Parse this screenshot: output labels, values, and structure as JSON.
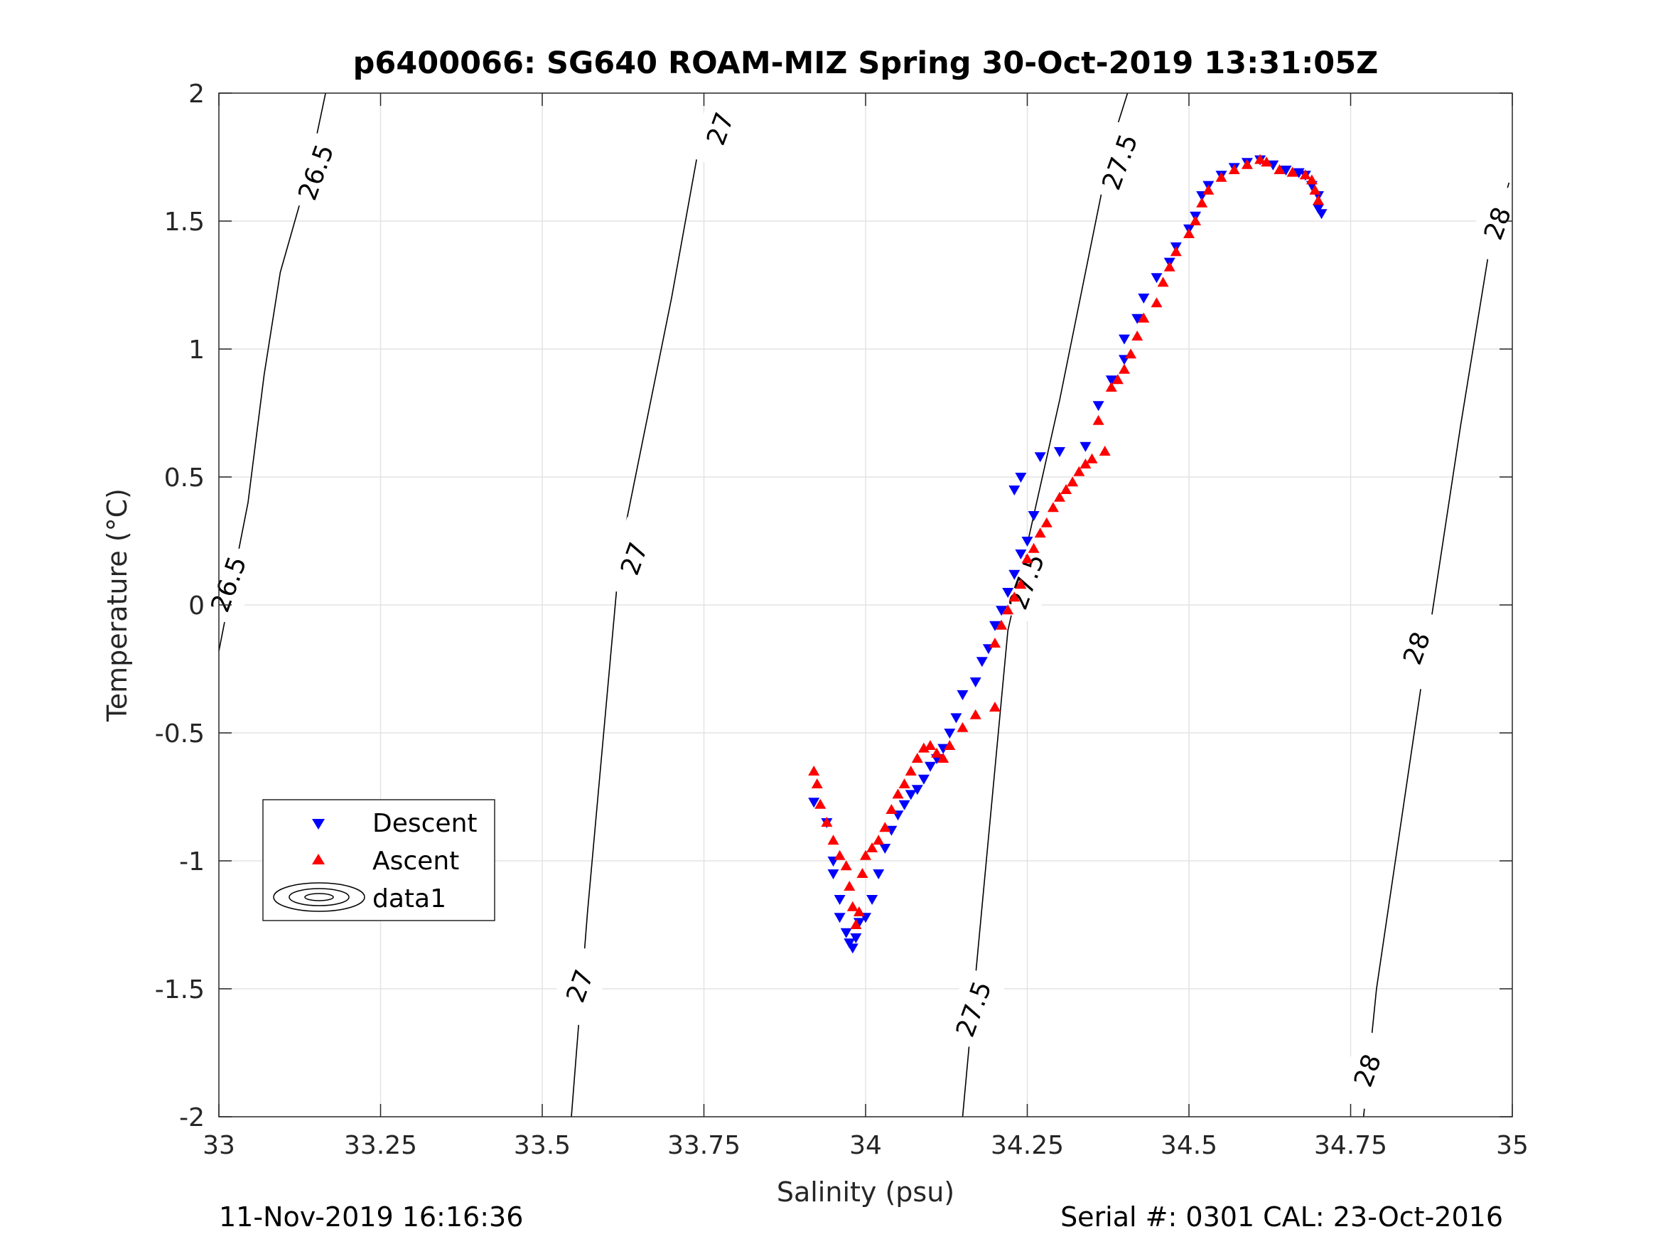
{
  "chart_data": {
    "type": "scatter",
    "title": "p6400066: SG640 ROAM-MIZ Spring 30-Oct-2019 13:31:05Z",
    "xlabel": "Salinity (psu)",
    "ylabel": "Temperature (°C)",
    "xlim": [
      33,
      35
    ],
    "ylim": [
      -2,
      2
    ],
    "x_ticks": [
      "33",
      "33.25",
      "33.5",
      "33.75",
      "34",
      "34.25",
      "34.5",
      "34.75",
      "35"
    ],
    "y_ticks": [
      "2",
      "1.5",
      "1",
      "0.5",
      "0",
      "-0.5",
      "-1",
      "-1.5",
      "-2"
    ],
    "grid": true,
    "legend_position": "lower-left",
    "series": [
      {
        "name": "Descent",
        "marker": "triangle-down",
        "color": "#0000ff",
        "points": [
          [
            33.92,
            -0.77
          ],
          [
            33.94,
            -0.85
          ],
          [
            33.95,
            -1.0
          ],
          [
            33.95,
            -1.05
          ],
          [
            33.96,
            -1.15
          ],
          [
            33.96,
            -1.22
          ],
          [
            33.97,
            -1.28
          ],
          [
            33.975,
            -1.32
          ],
          [
            33.98,
            -1.34
          ],
          [
            33.985,
            -1.3
          ],
          [
            33.99,
            -1.24
          ],
          [
            34.0,
            -1.22
          ],
          [
            34.01,
            -1.15
          ],
          [
            34.02,
            -1.05
          ],
          [
            34.03,
            -0.95
          ],
          [
            34.04,
            -0.88
          ],
          [
            34.05,
            -0.82
          ],
          [
            34.06,
            -0.78
          ],
          [
            34.07,
            -0.74
          ],
          [
            34.08,
            -0.72
          ],
          [
            34.09,
            -0.68
          ],
          [
            34.1,
            -0.63
          ],
          [
            34.11,
            -0.6
          ],
          [
            34.12,
            -0.56
          ],
          [
            34.13,
            -0.5
          ],
          [
            34.14,
            -0.44
          ],
          [
            34.15,
            -0.35
          ],
          [
            34.17,
            -0.3
          ],
          [
            34.18,
            -0.22
          ],
          [
            34.19,
            -0.17
          ],
          [
            34.2,
            -0.08
          ],
          [
            34.21,
            -0.02
          ],
          [
            34.22,
            0.05
          ],
          [
            34.23,
            0.12
          ],
          [
            34.24,
            0.2
          ],
          [
            34.25,
            0.25
          ],
          [
            34.26,
            0.35
          ],
          [
            34.23,
            0.45
          ],
          [
            34.24,
            0.5
          ],
          [
            34.27,
            0.58
          ],
          [
            34.3,
            0.6
          ],
          [
            34.34,
            0.62
          ],
          [
            34.36,
            0.78
          ],
          [
            34.38,
            0.88
          ],
          [
            34.4,
            0.96
          ],
          [
            34.4,
            1.04
          ],
          [
            34.42,
            1.12
          ],
          [
            34.43,
            1.2
          ],
          [
            34.45,
            1.28
          ],
          [
            34.47,
            1.34
          ],
          [
            34.48,
            1.4
          ],
          [
            34.5,
            1.47
          ],
          [
            34.51,
            1.52
          ],
          [
            34.52,
            1.6
          ],
          [
            34.53,
            1.64
          ],
          [
            34.55,
            1.68
          ],
          [
            34.57,
            1.71
          ],
          [
            34.59,
            1.73
          ],
          [
            34.61,
            1.74
          ],
          [
            34.63,
            1.72
          ],
          [
            34.65,
            1.7
          ],
          [
            34.67,
            1.69
          ],
          [
            34.68,
            1.68
          ],
          [
            34.69,
            1.64
          ],
          [
            34.7,
            1.6
          ],
          [
            34.7,
            1.55
          ],
          [
            34.705,
            1.53
          ]
        ]
      },
      {
        "name": "Ascent",
        "marker": "triangle-up",
        "color": "#ff0000",
        "points": [
          [
            33.92,
            -0.65
          ],
          [
            33.925,
            -0.7
          ],
          [
            33.93,
            -0.78
          ],
          [
            33.94,
            -0.85
          ],
          [
            33.95,
            -0.92
          ],
          [
            33.96,
            -0.98
          ],
          [
            33.97,
            -1.02
          ],
          [
            33.975,
            -1.1
          ],
          [
            33.98,
            -1.18
          ],
          [
            33.985,
            -1.25
          ],
          [
            33.99,
            -1.2
          ],
          [
            33.995,
            -1.05
          ],
          [
            34.0,
            -0.98
          ],
          [
            34.01,
            -0.95
          ],
          [
            34.02,
            -0.92
          ],
          [
            34.03,
            -0.87
          ],
          [
            34.04,
            -0.8
          ],
          [
            34.05,
            -0.74
          ],
          [
            34.06,
            -0.7
          ],
          [
            34.07,
            -0.65
          ],
          [
            34.08,
            -0.6
          ],
          [
            34.09,
            -0.56
          ],
          [
            34.1,
            -0.55
          ],
          [
            34.11,
            -0.58
          ],
          [
            34.12,
            -0.6
          ],
          [
            34.13,
            -0.55
          ],
          [
            34.15,
            -0.48
          ],
          [
            34.17,
            -0.43
          ],
          [
            34.2,
            -0.4
          ],
          [
            34.2,
            -0.15
          ],
          [
            34.21,
            -0.08
          ],
          [
            34.22,
            -0.02
          ],
          [
            34.23,
            0.03
          ],
          [
            34.24,
            0.08
          ],
          [
            34.25,
            0.18
          ],
          [
            34.26,
            0.22
          ],
          [
            34.27,
            0.28
          ],
          [
            34.28,
            0.32
          ],
          [
            34.29,
            0.38
          ],
          [
            34.3,
            0.42
          ],
          [
            34.31,
            0.45
          ],
          [
            34.32,
            0.48
          ],
          [
            34.33,
            0.52
          ],
          [
            34.34,
            0.55
          ],
          [
            34.35,
            0.57
          ],
          [
            34.37,
            0.6
          ],
          [
            34.36,
            0.72
          ],
          [
            34.38,
            0.85
          ],
          [
            34.39,
            0.88
          ],
          [
            34.4,
            0.92
          ],
          [
            34.41,
            0.98
          ],
          [
            34.42,
            1.05
          ],
          [
            34.43,
            1.12
          ],
          [
            34.45,
            1.18
          ],
          [
            34.46,
            1.26
          ],
          [
            34.47,
            1.32
          ],
          [
            34.48,
            1.38
          ],
          [
            34.5,
            1.45
          ],
          [
            34.51,
            1.5
          ],
          [
            34.52,
            1.57
          ],
          [
            34.53,
            1.62
          ],
          [
            34.55,
            1.67
          ],
          [
            34.57,
            1.7
          ],
          [
            34.59,
            1.72
          ],
          [
            34.61,
            1.74
          ],
          [
            34.62,
            1.73
          ],
          [
            34.64,
            1.7
          ],
          [
            34.66,
            1.69
          ],
          [
            34.68,
            1.68
          ],
          [
            34.69,
            1.66
          ],
          [
            34.695,
            1.62
          ],
          [
            34.7,
            1.58
          ]
        ]
      }
    ],
    "contours": [
      {
        "level_label": "26.5",
        "points": [
          [
            33.0,
            -0.18
          ],
          [
            33.045,
            0.4
          ],
          [
            33.07,
            0.9
          ],
          [
            33.095,
            1.3
          ],
          [
            33.14,
            1.7
          ],
          [
            33.165,
            2.0
          ]
        ],
        "labels": [
          {
            "x": 33.016,
            "y": 0.08
          },
          {
            "x": 33.151,
            "y": 1.69
          }
        ]
      },
      {
        "level_label": "27",
        "points": [
          [
            33.545,
            -2.0
          ],
          [
            33.57,
            -1.2
          ],
          [
            33.62,
            0.2
          ],
          [
            33.7,
            1.2
          ],
          [
            33.75,
            1.9
          ],
          [
            33.79,
            2.0
          ]
        ],
        "labels": [
          {
            "x": 33.559,
            "y": -1.49
          },
          {
            "x": 33.643,
            "y": 0.18
          },
          {
            "x": 33.776,
            "y": 1.86
          }
        ]
      },
      {
        "level_label": "27.5",
        "points": [
          [
            34.15,
            -2.0
          ],
          [
            34.17,
            -1.45
          ],
          [
            34.22,
            -0.1
          ],
          [
            34.3,
            0.8
          ],
          [
            34.38,
            1.8
          ],
          [
            34.405,
            2.0
          ]
        ],
        "labels": [
          {
            "x": 34.168,
            "y": -1.58
          },
          {
            "x": 34.25,
            "y": 0.09
          },
          {
            "x": 34.394,
            "y": 1.73
          }
        ]
      },
      {
        "level_label": "28",
        "points": [
          [
            34.77,
            -2.0
          ],
          [
            34.79,
            -1.5
          ],
          [
            34.86,
            -0.3
          ],
          [
            34.92,
            0.7
          ],
          [
            34.965,
            1.4
          ],
          [
            34.995,
            1.65
          ]
        ],
        "labels": [
          {
            "x": 34.777,
            "y": -1.82
          },
          {
            "x": 34.853,
            "y": -0.17
          },
          {
            "x": 34.978,
            "y": 1.49
          }
        ]
      }
    ]
  },
  "legend": {
    "descent_label": "Descent",
    "ascent_label": "Ascent",
    "contour_label": "data1"
  },
  "footer": {
    "timestamp": "11-Nov-2019 16:16:36",
    "serial": "Serial #: 0301  CAL: 23-Oct-2016"
  }
}
